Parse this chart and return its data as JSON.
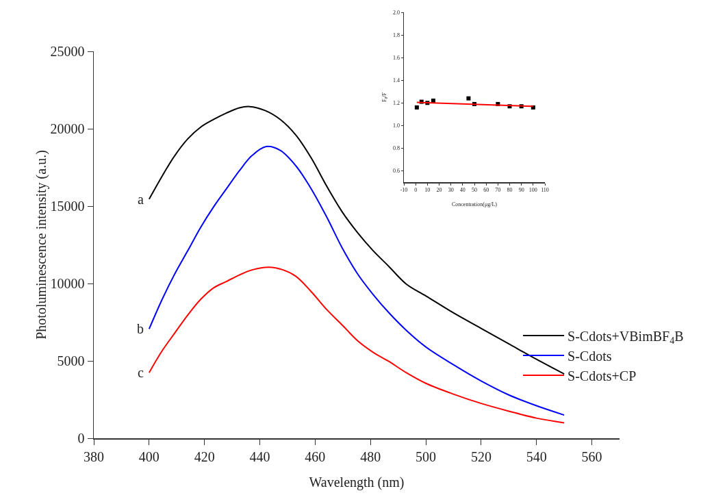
{
  "chart_data": [
    {
      "type": "line",
      "xlabel": "Wavelength (nm)",
      "ylabel": "Photoluminescence intensity (a.u.)",
      "xlim": [
        380,
        570
      ],
      "xticks": [
        380,
        400,
        420,
        440,
        460,
        480,
        500,
        520,
        540,
        560
      ],
      "ylim": [
        0,
        25000
      ],
      "yticks": [
        0,
        5000,
        10000,
        15000,
        20000,
        25000
      ],
      "legend": "right",
      "series": [
        {
          "name": "S-Cdots+VBimBF$_{4}$B",
          "color": "#000000",
          "x": [
            400,
            404.7,
            409.3,
            414,
            418.6,
            423.3,
            427.9,
            432.6,
            436.3,
            441.9,
            447.4,
            453,
            458.6,
            464.2,
            469.8,
            475.3,
            480.9,
            486.5,
            492.9,
            500,
            510,
            520,
            530,
            540,
            550
          ],
          "values": [
            15450,
            16940,
            18270,
            19350,
            20100,
            20600,
            21010,
            21350,
            21430,
            21180,
            20600,
            19600,
            18110,
            16280,
            14620,
            13290,
            12130,
            11130,
            9970,
            9200,
            8100,
            7100,
            6100,
            5100,
            4150
          ]
        },
        {
          "name": "S-Cdots",
          "color": "#0000ff",
          "x": [
            400,
            404.7,
            409.3,
            414,
            418.6,
            423.3,
            427.9,
            432.6,
            437.2,
            442.3,
            447.4,
            453,
            458.6,
            464.2,
            469.8,
            475.3,
            480.9,
            486.5,
            492.9,
            500,
            510,
            520,
            530,
            540,
            550
          ],
          "values": [
            7060,
            8970,
            10630,
            12130,
            13620,
            14950,
            16110,
            17280,
            18270,
            18850,
            18600,
            17610,
            16110,
            14290,
            12290,
            10630,
            9300,
            8140,
            6980,
            5900,
            4750,
            3700,
            2800,
            2100,
            1500
          ]
        },
        {
          "name": "S-Cdots+CP",
          "color": "#ff0000",
          "x": [
            400,
            404.7,
            409.3,
            414,
            418.6,
            423.3,
            427.9,
            432.6,
            437.2,
            443.3,
            448.4,
            453,
            458.6,
            464.2,
            469.8,
            475.3,
            480.9,
            486.5,
            492.9,
            500,
            510,
            520,
            530,
            540,
            550
          ],
          "values": [
            4240,
            5650,
            6810,
            7970,
            8970,
            9720,
            10130,
            10550,
            10880,
            11050,
            10880,
            10470,
            9470,
            8310,
            7310,
            6310,
            5560,
            4980,
            4240,
            3550,
            2850,
            2250,
            1750,
            1300,
            1000
          ]
        }
      ],
      "annotations": [
        "a",
        "b",
        "c"
      ]
    },
    {
      "type": "scatter",
      "xlabel": "Concentration(μg/L)",
      "ylabel": "F₀/F",
      "xlim": [
        -10,
        110
      ],
      "xticks": [
        -10,
        0,
        10,
        20,
        30,
        40,
        50,
        60,
        70,
        80,
        90,
        100,
        110
      ],
      "ylim": [
        0.5,
        2.0
      ],
      "yticks": [
        0.6,
        0.8,
        {
          "value": 1.0,
          "label": "1.0"
        },
        1.2,
        1.4,
        1.6,
        1.8,
        {
          "value": 2.0,
          "label": "2.0"
        }
      ],
      "series": [
        {
          "type": "scatter",
          "color": "#000000",
          "marker": "square",
          "x": [
            1,
            5,
            10,
            15,
            45,
            50,
            70,
            80,
            90,
            100
          ],
          "values": [
            1.16,
            1.21,
            1.2,
            1.22,
            1.24,
            1.19,
            1.19,
            1.17,
            1.17,
            1.16
          ]
        },
        {
          "type": "line",
          "color": "#ff0000",
          "x": [
            1,
            100
          ],
          "values": [
            1.205,
            1.17
          ]
        }
      ]
    }
  ]
}
